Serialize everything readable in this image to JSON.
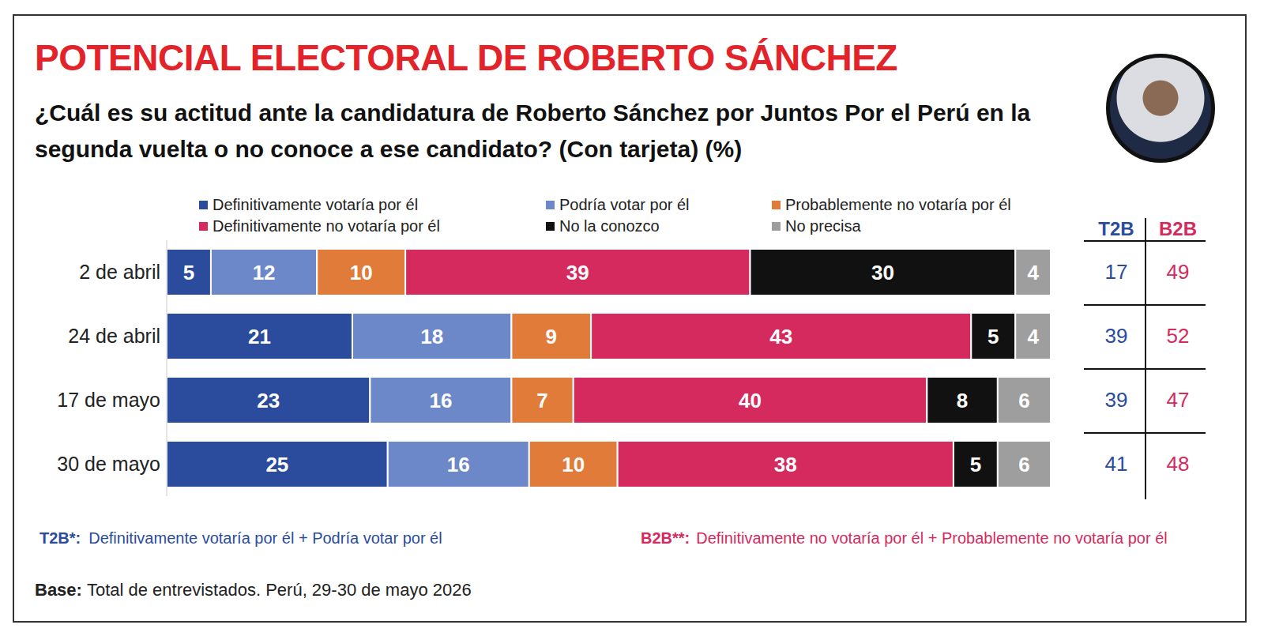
{
  "chart_data": {
    "type": "bar",
    "title": "POTENCIAL ELECTORAL DE ROBERTO SÁNCHEZ",
    "subtitle": "¿Cuál es su actitud ante la candidatura de Roberto Sánchez por Juntos Por el Perú en la segunda vuelta o no conoce a ese candidato? (Con tarjeta) (%)",
    "categories": [
      "2 de abril",
      "24 de abril",
      "17 de mayo",
      "30 de mayo"
    ],
    "series": [
      {
        "name": "Definitivamente votaría por él",
        "color": "#2b4c9c",
        "values": [
          5,
          21,
          23,
          25
        ]
      },
      {
        "name": "Podría votar por él",
        "color": "#6c88c8",
        "values": [
          12,
          18,
          16,
          16
        ]
      },
      {
        "name": "Probablemente no votaría por él",
        "color": "#e07b39",
        "values": [
          10,
          9,
          7,
          10
        ]
      },
      {
        "name": "Definitivamente no votaría por él",
        "color": "#d42a5e",
        "values": [
          39,
          43,
          40,
          38
        ]
      },
      {
        "name": "No la conozco",
        "color": "#111111",
        "values": [
          30,
          5,
          8,
          5
        ]
      },
      {
        "name": "No precisa",
        "color": "#9e9e9e",
        "values": [
          4,
          4,
          6,
          6
        ]
      }
    ],
    "xlim": [
      0,
      100
    ],
    "orientation": "horizontal",
    "stacked": true,
    "data_labels": true,
    "tick_labels": "y",
    "legend": "top"
  },
  "table": {
    "headers": [
      "T2B",
      "B2B"
    ],
    "rows": [
      [
        17,
        49
      ],
      [
        39,
        52
      ],
      [
        39,
        47
      ],
      [
        41,
        48
      ]
    ]
  },
  "notes": [
    {
      "label": "T2B*:",
      "text": "Definitivamente votaría por él + Podría votar por él"
    },
    {
      "label": "B2B**:",
      "text": "Definitivamente no votaría por él + Probablemente no votaría por él"
    }
  ],
  "base": {
    "label": "Base:",
    "text": "Total de entrevistados. Perú, 29-30 de mayo 2026"
  }
}
